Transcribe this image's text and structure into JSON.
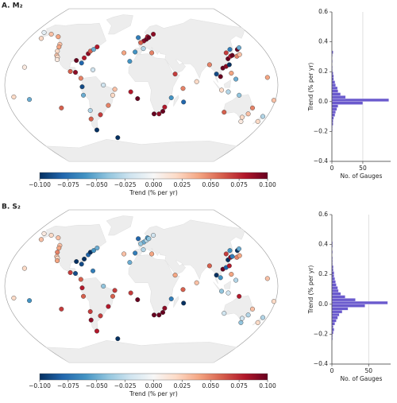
{
  "chart_data": [
    {
      "type": "scatter",
      "title": "A. M₂",
      "colormap": [
        "#053061",
        "#2166ac",
        "#4393c3",
        "#92c5de",
        "#d1e5f0",
        "#f7f7f7",
        "#fddbc7",
        "#f4a582",
        "#d6604d",
        "#b2182b",
        "#67001f"
      ],
      "clim": [
        -0.1,
        0.1
      ],
      "cticks": [
        {
          "value": -0.1,
          "label": "−0.100"
        },
        {
          "value": -0.075,
          "label": "−0.075"
        },
        {
          "value": -0.05,
          "label": "−0.050"
        },
        {
          "value": -0.025,
          "label": "−0.025"
        },
        {
          "value": 0,
          "label": "0.000"
        },
        {
          "value": 0.025,
          "label": "0.025"
        },
        {
          "value": 0.05,
          "label": "0.050"
        },
        {
          "value": 0.075,
          "label": "0.075"
        },
        {
          "value": 0.1,
          "label": "0.100"
        }
      ],
      "colorbar_label": "Trend (% per yr)",
      "lon": [
        -124,
        -123,
        -122,
        -120,
        -118,
        -117,
        -135,
        -150,
        -160,
        -165,
        -158,
        -90,
        -82,
        -80,
        -76,
        -74,
        -70,
        -66,
        -65,
        -88,
        -80,
        -95,
        -78,
        -77,
        -71,
        -73,
        -70,
        -58,
        -45,
        -38,
        -35,
        -50,
        -25,
        -16,
        -5,
        -14,
        -5,
        4,
        8,
        10,
        12,
        20,
        -9,
        3,
        15,
        -1,
        18,
        25,
        30,
        32,
        40,
        57,
        55,
        45,
        73,
        100,
        105,
        110,
        115,
        120,
        121,
        126,
        129,
        135,
        140,
        141,
        145,
        130,
        122,
        120,
        125,
        106,
        115,
        93,
        116,
        153,
        151,
        145,
        130,
        147,
        174,
        172,
        167,
        -150,
        178,
        -170,
        -110,
        -40
      ],
      "lat": [
        48,
        45,
        40,
        35,
        33,
        30,
        57,
        60,
        55,
        62,
        21,
        29,
        26,
        32,
        37,
        40,
        42,
        45,
        18,
        15,
        8,
        16,
        -2,
        -12,
        -30,
        -40,
        -53,
        -35,
        -24,
        -12,
        -5,
        0,
        38,
        28,
        -16,
        -8,
        56,
        52,
        54,
        57,
        56,
        60,
        39,
        43,
        38,
        50,
        -34,
        -34,
        -31,
        -26,
        -15,
        -20,
        -4,
        13,
        4,
        13,
        10,
        20,
        22,
        24,
        31,
        34,
        35,
        34,
        36,
        42,
        44,
        42,
        38,
        14,
        7,
        -6,
        -8,
        24,
        -32,
        -27,
        -34,
        -38,
        -12,
        -43,
        -37,
        -43,
        9,
        -17,
        -18,
        -14,
        -27,
        -62
      ],
      "values": [
        0.03,
        0.04,
        0.02,
        0.03,
        0.02,
        0.01,
        0.04,
        0.03,
        0.02,
        -0.01,
        0.01,
        0.1,
        -0.08,
        0.08,
        0.09,
        0.06,
        -0.05,
        0.08,
        -0.02,
        0.09,
        0.05,
        0.06,
        -0.09,
        -0.05,
        -0.03,
        0.06,
        -0.1,
        0.07,
        0.05,
        0.02,
        0.03,
        -0.02,
        0.04,
        -0.06,
        0.1,
        0.08,
        -0.07,
        0.09,
        0.1,
        0.08,
        0.1,
        0.09,
        -0.06,
        -0.03,
        0.05,
        0.06,
        0.1,
        0.09,
        0.1,
        0.08,
        -0.06,
        -0.08,
        0.05,
        0.07,
        0.02,
        -0.09,
        0.1,
        0.1,
        0.09,
        -0.1,
        0.1,
        0.08,
        0.1,
        0.05,
        0.03,
        0.1,
        -0.05,
        -0.07,
        0.07,
        0.04,
        -0.05,
        0.02,
        -0.03,
        0.05,
        0.06,
        0.05,
        0.03,
        0.02,
        -0.04,
        0.01,
        -0.03,
        0.02,
        0.04,
        -0.05,
        0.03,
        0.02,
        0.06,
        -0.1
      ]
    },
    {
      "type": "histogram",
      "orientation": "horizontal",
      "color": "#6a5acd",
      "bins": [
        -0.2,
        -0.18,
        -0.16,
        -0.14,
        -0.12,
        -0.1,
        -0.08,
        -0.06,
        -0.04,
        -0.02,
        0,
        0.02,
        0.04,
        0.06,
        0.08,
        0.1,
        0.12,
        0.14,
        0.16,
        0.18,
        0.2,
        0.22,
        0.24,
        0.26,
        0.28,
        0.3,
        0.32,
        0.34
      ],
      "values": [
        1,
        1,
        2,
        2,
        3,
        5,
        6,
        8,
        10,
        50,
        92,
        22,
        14,
        10,
        9,
        6,
        5,
        3,
        3,
        2,
        1,
        1,
        0,
        1,
        0,
        1,
        2
      ],
      "ylim": [
        -0.4,
        0.6
      ],
      "yticks": [
        {
          "value": -0.4,
          "label": "−0.4"
        },
        {
          "value": -0.2,
          "label": "−0.2"
        },
        {
          "value": 0,
          "label": "0.0"
        },
        0.2,
        0.4,
        0.6
      ],
      "xlim": [
        0,
        95
      ],
      "xticks": [
        0,
        50
      ],
      "grid": true,
      "xlabel": "No. of Gauges",
      "ylabel": "Trend (% per yr)"
    },
    {
      "type": "scatter",
      "title": "B. S₂",
      "colormap": [
        "#053061",
        "#2166ac",
        "#4393c3",
        "#92c5de",
        "#d1e5f0",
        "#f7f7f7",
        "#fddbc7",
        "#f4a582",
        "#d6604d",
        "#b2182b",
        "#67001f"
      ],
      "clim": [
        -0.1,
        0.1
      ],
      "cticks": [
        {
          "value": -0.1,
          "label": "−0.100"
        },
        {
          "value": -0.075,
          "label": "−0.075"
        },
        {
          "value": -0.05,
          "label": "−0.050"
        },
        {
          "value": -0.025,
          "label": "−0.025"
        },
        {
          "value": 0,
          "label": "0.000"
        },
        {
          "value": 0.025,
          "label": "0.025"
        },
        {
          "value": 0.05,
          "label": "0.050"
        },
        {
          "value": 0.075,
          "label": "0.075"
        },
        {
          "value": 0.1,
          "label": "0.100"
        }
      ],
      "colorbar_label": "Trend (% per yr)",
      "lon": [
        -124,
        -123,
        -122,
        -120,
        -118,
        -117,
        -135,
        -150,
        -160,
        -165,
        -158,
        -90,
        -82,
        -80,
        -76,
        -74,
        -70,
        -66,
        -65,
        -88,
        -80,
        -95,
        -78,
        -77,
        -71,
        -73,
        -70,
        -58,
        -45,
        -38,
        -35,
        -50,
        -25,
        -16,
        -5,
        -14,
        -5,
        4,
        8,
        10,
        12,
        20,
        -9,
        3,
        15,
        -1,
        18,
        25,
        30,
        32,
        40,
        57,
        55,
        45,
        73,
        100,
        105,
        110,
        115,
        120,
        121,
        126,
        129,
        135,
        140,
        141,
        145,
        130,
        122,
        120,
        125,
        106,
        115,
        93,
        116,
        153,
        151,
        145,
        130,
        147,
        174,
        172,
        167,
        -150,
        178,
        -170,
        -110,
        -40
      ],
      "lat": [
        48,
        45,
        40,
        35,
        33,
        30,
        57,
        60,
        55,
        62,
        21,
        29,
        26,
        32,
        37,
        40,
        42,
        45,
        18,
        15,
        8,
        16,
        -2,
        -12,
        -30,
        -40,
        -53,
        -35,
        -24,
        -12,
        -5,
        0,
        38,
        28,
        -16,
        -8,
        56,
        52,
        54,
        57,
        56,
        60,
        39,
        43,
        38,
        50,
        -34,
        -34,
        -31,
        -26,
        -15,
        -20,
        -4,
        13,
        4,
        13,
        10,
        20,
        22,
        24,
        31,
        34,
        35,
        34,
        36,
        42,
        44,
        42,
        38,
        14,
        7,
        -6,
        -8,
        24,
        -32,
        -27,
        -34,
        -38,
        -12,
        -43,
        -37,
        -43,
        9,
        -17,
        -18,
        -14,
        -27,
        -62
      ],
      "values": [
        0.03,
        0.04,
        0.05,
        0.03,
        0.02,
        0.04,
        0.03,
        0.02,
        0.03,
        0.01,
        0.02,
        -0.1,
        -0.09,
        -0.1,
        -0.08,
        -0.1,
        -0.06,
        -0.05,
        -0.07,
        -0.09,
        0.06,
        0.07,
        0.08,
        0.06,
        0.07,
        0.09,
        0.08,
        0.07,
        0.08,
        0.06,
        0.07,
        -0.04,
        0.03,
        -0.05,
        0.1,
        0.07,
        -0.08,
        -0.05,
        -0.03,
        -0.06,
        -0.04,
        -0.02,
        -0.07,
        -0.03,
        0.04,
        -0.04,
        0.1,
        0.1,
        0.1,
        0.09,
        -0.07,
        -0.1,
        0.06,
        0.04,
        0.03,
        -0.1,
        -0.06,
        0.1,
        -0.08,
        0.08,
        -0.1,
        0.09,
        -0.07,
        0.05,
        0.04,
        -0.1,
        -0.05,
        -0.06,
        0.07,
        0.04,
        -0.03,
        -0.04,
        -0.02,
        0.06,
        -0.02,
        0.03,
        -0.03,
        -0.02,
        0.08,
        -0.04,
        -0.03,
        0.02,
        0.03,
        -0.06,
        0.02,
        0.02,
        0.07,
        -0.1
      ]
    },
    {
      "type": "histogram",
      "orientation": "horizontal",
      "color": "#6a5acd",
      "bins": [
        -0.24,
        -0.22,
        -0.2,
        -0.18,
        -0.16,
        -0.14,
        -0.12,
        -0.1,
        -0.08,
        -0.06,
        -0.04,
        -0.02,
        0,
        0.02,
        0.04,
        0.06,
        0.08,
        0.1,
        0.12,
        0.14,
        0.16,
        0.18,
        0.2,
        0.22,
        0.24,
        0.26,
        0.28,
        0.3,
        0.32,
        0.34,
        0.36,
        0.38,
        0.4,
        0.42
      ],
      "values": [
        1,
        1,
        2,
        3,
        2,
        4,
        6,
        8,
        10,
        14,
        22,
        45,
        76,
        32,
        18,
        12,
        9,
        8,
        6,
        5,
        4,
        3,
        3,
        2,
        2,
        1,
        1,
        1,
        0,
        1,
        0,
        1,
        1
      ],
      "ylim": [
        -0.4,
        0.6
      ],
      "yticks": [
        {
          "value": -0.4,
          "label": "−0.4"
        },
        {
          "value": -0.2,
          "label": "−0.2"
        },
        {
          "value": 0,
          "label": "0.0"
        },
        0.2,
        0.4,
        0.6
      ],
      "xlim": [
        0,
        80
      ],
      "xticks": [
        0,
        50
      ],
      "grid": true,
      "xlabel": "No. of Gauges",
      "ylabel": "Trend (% per yr)"
    }
  ]
}
